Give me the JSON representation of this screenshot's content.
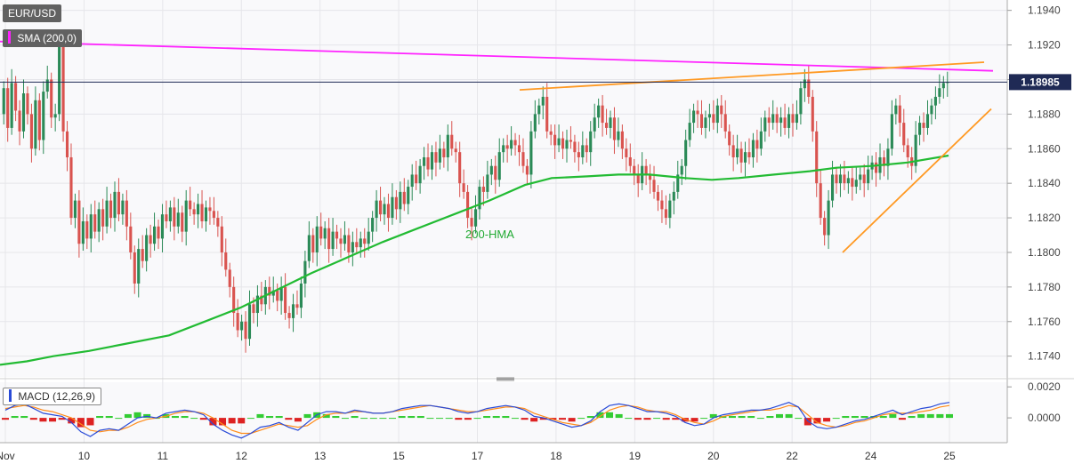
{
  "chart_data": [
    {
      "type": "candlestick",
      "title": "EUR/USD",
      "indicator_label": "SMA (200,0)",
      "price_badge": "1.18985",
      "last_price": 1.18985,
      "ylim": [
        1.1728,
        1.1946
      ],
      "y_ticks": [
        "1.1940",
        "1.1920",
        "1.1900",
        "1.1880",
        "1.1860",
        "1.1840",
        "1.1820",
        "1.1800",
        "1.1780",
        "1.1760",
        "1.1740"
      ],
      "x_ticks": [
        "Nov",
        "10",
        "11",
        "12",
        "13",
        "15",
        "17",
        "18",
        "19",
        "20",
        "22",
        "24",
        "25"
      ],
      "annotations": [
        "200-HMA"
      ],
      "ohlc_path": [
        1.188,
        1.1895,
        1.1872,
        1.1898,
        1.1882,
        1.187,
        1.1892,
        1.188,
        1.186,
        1.1888,
        1.1865,
        1.1893,
        1.19,
        1.1878,
        1.188,
        1.192,
        1.187,
        1.1855,
        1.182,
        1.183,
        1.1805,
        1.1818,
        1.1808,
        1.1822,
        1.1812,
        1.1825,
        1.1815,
        1.183,
        1.182,
        1.1835,
        1.1822,
        1.183,
        1.1815,
        1.18,
        1.1782,
        1.1802,
        1.1795,
        1.181,
        1.1805,
        1.1815,
        1.1808,
        1.1822,
        1.1818,
        1.1826,
        1.1815,
        1.1823,
        1.1812,
        1.183,
        1.1825,
        1.1822,
        1.1828,
        1.1818,
        1.1826,
        1.1824,
        1.182,
        1.1815,
        1.18,
        1.179,
        1.178,
        1.1765,
        1.1755,
        1.176,
        1.175,
        1.177,
        1.1765,
        1.1775,
        1.177,
        1.178,
        1.1775,
        1.1778,
        1.1772,
        1.178,
        1.1765,
        1.1762,
        1.177,
        1.1768,
        1.1782,
        1.1795,
        1.181,
        1.18,
        1.1815,
        1.1808,
        1.1814,
        1.1802,
        1.1812,
        1.1808,
        1.1805,
        1.181,
        1.18,
        1.1806,
        1.1803,
        1.1808,
        1.1805,
        1.1812,
        1.182,
        1.183,
        1.1822,
        1.1828,
        1.182,
        1.1832,
        1.1825,
        1.1835,
        1.1828,
        1.1838,
        1.1845,
        1.184,
        1.185,
        1.1855,
        1.1848,
        1.1858,
        1.1852,
        1.186,
        1.1855,
        1.1868,
        1.186,
        1.1858,
        1.184,
        1.1835,
        1.182,
        1.1815,
        1.1825,
        1.1838,
        1.1835,
        1.1845,
        1.185,
        1.1842,
        1.1858,
        1.1862,
        1.186,
        1.1865,
        1.1862,
        1.1858,
        1.185,
        1.1845,
        1.187,
        1.188,
        1.1885,
        1.189,
        1.187,
        1.1868,
        1.1862,
        1.1866,
        1.186,
        1.1865,
        1.1864,
        1.1858,
        1.1855,
        1.1862,
        1.1858,
        1.187,
        1.1878,
        1.1885,
        1.1875,
        1.1872,
        1.1878,
        1.1865,
        1.187,
        1.186,
        1.1855,
        1.185,
        1.1845,
        1.184,
        1.185,
        1.1845,
        1.1842,
        1.1835,
        1.183,
        1.1825,
        1.182,
        1.183,
        1.1835,
        1.1845,
        1.185,
        1.1865,
        1.1875,
        1.1882,
        1.188,
        1.1872,
        1.1878,
        1.188,
        1.1875,
        1.1885,
        1.188,
        1.187,
        1.1862,
        1.1855,
        1.186,
        1.1852,
        1.1858,
        1.1855,
        1.1865,
        1.186,
        1.187,
        1.1878,
        1.1875,
        1.188,
        1.1875,
        1.1878,
        1.1872,
        1.188,
        1.1875,
        1.188,
        1.1895,
        1.19,
        1.189,
        1.187,
        1.184,
        1.182,
        1.181,
        1.183,
        1.1845,
        1.184,
        1.1845,
        1.184,
        1.1843,
        1.1838,
        1.1842,
        1.1845,
        1.184,
        1.1848,
        1.1852,
        1.1846,
        1.1855,
        1.185,
        1.186,
        1.188,
        1.1885,
        1.1875,
        1.1862,
        1.1855,
        1.185,
        1.1868,
        1.1875,
        1.1872,
        1.188,
        1.1885,
        1.189,
        1.1895,
        1.1898,
        1.18985
      ],
      "series": [
        {
          "name": "200-HMA",
          "color": "#22bb33",
          "points": [
            [
              0,
              1.1735
            ],
            [
              30,
              1.1737
            ],
            [
              60,
              1.174
            ],
            [
              100,
              1.1743
            ],
            [
              140,
              1.1747
            ],
            [
              190,
              1.1752
            ],
            [
              230,
              1.176
            ],
            [
              270,
              1.1768
            ],
            [
              310,
              1.1778
            ],
            [
              350,
              1.1788
            ],
            [
              390,
              1.1797
            ],
            [
              430,
              1.1806
            ],
            [
              470,
              1.1814
            ],
            [
              510,
              1.1822
            ],
            [
              550,
              1.183
            ],
            [
              590,
              1.1839
            ],
            [
              620,
              1.1843
            ],
            [
              660,
              1.1844
            ],
            [
              695,
              1.1845
            ],
            [
              730,
              1.1845
            ],
            [
              770,
              1.1843
            ],
            [
              800,
              1.1842
            ],
            [
              830,
              1.1843
            ],
            [
              870,
              1.1845
            ],
            [
              910,
              1.1847
            ],
            [
              940,
              1.1849
            ],
            [
              980,
              1.185
            ],
            [
              1020,
              1.1852
            ],
            [
              1066,
              1.1856
            ]
          ]
        },
        {
          "name": "SMA (200,0)",
          "color": "#ff22ff",
          "points": [
            [
              0,
              1.1922
            ],
            [
              1116,
              1.1905
            ]
          ]
        },
        {
          "name": "upper-trendline",
          "color": "#ff9922",
          "points": [
            [
              584,
              1.1894
            ],
            [
              1106,
              1.191
            ]
          ]
        },
        {
          "name": "lower-trendline",
          "color": "#ff9922",
          "points": [
            [
              947,
              1.18
            ],
            [
              1114,
              1.1883
            ]
          ]
        }
      ]
    },
    {
      "type": "macd",
      "title": "MACD (12,26,9)",
      "ylim": [
        -0.0016,
        0.0023
      ],
      "y_ticks": [
        "0.0020",
        "0.0000"
      ],
      "macd_path": [
        0.0005,
        0.0008,
        0.0009,
        0.0006,
        0.0003,
        0.0002,
        0.0001,
        -0.0003,
        -0.0009,
        -0.0012,
        -0.0008,
        -0.0007,
        -0.0008,
        -0.0004,
        0.0,
        0.0001,
        0.0,
        0.0003,
        0.0004,
        0.0005,
        0.0004,
        0.0002,
        -0.0004,
        -0.0008,
        -0.0011,
        -0.0013,
        -0.001,
        -0.0006,
        -0.0005,
        -0.0003,
        -0.0006,
        -0.0008,
        -0.0003,
        0.0002,
        0.0004,
        0.0004,
        0.0003,
        0.0005,
        0.0004,
        0.0003,
        0.0003,
        0.0004,
        0.0006,
        0.0007,
        0.0008,
        0.0008,
        0.0007,
        0.0006,
        0.0004,
        0.0003,
        0.0004,
        0.0006,
        0.0007,
        0.0008,
        0.0007,
        0.0005,
        0.0001,
        0.0,
        -0.0002,
        -0.0004,
        -0.0006,
        -0.0005,
        -0.0002,
        0.0004,
        0.0008,
        0.0009,
        0.0008,
        0.0006,
        0.0004,
        0.0004,
        0.0003,
        0.0001,
        -0.0003,
        -0.0005,
        -0.0004,
        0.0,
        0.0002,
        0.0003,
        0.0004,
        0.0005,
        0.0005,
        0.0006,
        0.0008,
        0.001,
        0.0007,
        -0.0002,
        -0.0006,
        -0.0007,
        -0.0006,
        -0.0004,
        -0.0002,
        -0.0001,
        0.0001,
        0.0003,
        0.0005,
        0.0002,
        0.0004,
        0.0006,
        0.0007,
        0.0009,
        0.001
      ],
      "signal_path": [
        0.0006,
        0.0007,
        0.0008,
        0.0007,
        0.0005,
        0.0004,
        0.0002,
        0.0,
        -0.0004,
        -0.0008,
        -0.0009,
        -0.0008,
        -0.0008,
        -0.0006,
        -0.0003,
        -0.0001,
        0.0,
        0.0001,
        0.0003,
        0.0004,
        0.0004,
        0.0003,
        0.0,
        -0.0004,
        -0.0008,
        -0.001,
        -0.001,
        -0.0008,
        -0.0006,
        -0.0004,
        -0.0005,
        -0.0006,
        -0.0005,
        -0.0001,
        0.0002,
        0.0003,
        0.0003,
        0.0004,
        0.0004,
        0.0003,
        0.0003,
        0.0004,
        0.0005,
        0.0006,
        0.0007,
        0.0008,
        0.0007,
        0.0006,
        0.0005,
        0.0004,
        0.0004,
        0.0005,
        0.0006,
        0.0007,
        0.0007,
        0.0006,
        0.0003,
        0.0001,
        -0.0001,
        -0.0003,
        -0.0004,
        -0.0005,
        -0.0003,
        0.0001,
        0.0005,
        0.0007,
        0.0008,
        0.0007,
        0.0005,
        0.0004,
        0.0004,
        0.0002,
        -0.0001,
        -0.0003,
        -0.0004,
        -0.0002,
        0.0001,
        0.0002,
        0.0003,
        0.0004,
        0.0005,
        0.0005,
        0.0006,
        0.0008,
        0.0007,
        0.0002,
        -0.0003,
        -0.0005,
        -0.0006,
        -0.0005,
        -0.0003,
        -0.0002,
        0.0,
        0.0002,
        0.0003,
        0.0003,
        0.0003,
        0.0004,
        0.0005,
        0.0007,
        0.0008
      ]
    }
  ]
}
